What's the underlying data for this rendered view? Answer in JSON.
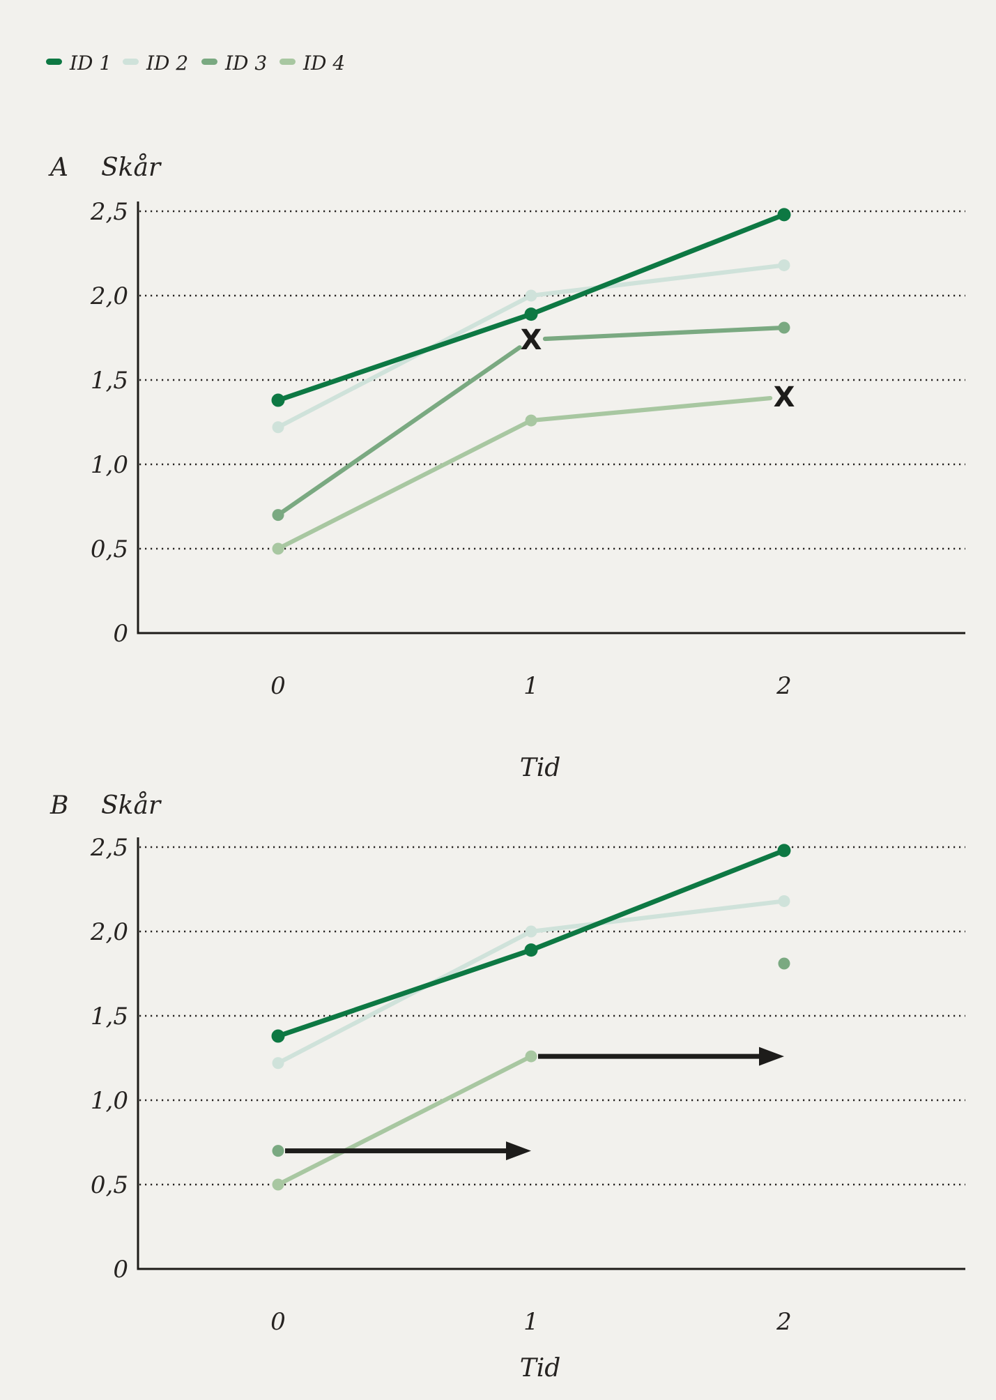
{
  "colors": {
    "background": "#f2f1ed",
    "ink": "#262321",
    "axis": "#1d1b18",
    "annotation": "#1d1c1a"
  },
  "legend": {
    "items": [
      {
        "label": "ID 1",
        "color": "#0d7843"
      },
      {
        "label": "ID 2",
        "color": "#cfe2da"
      },
      {
        "label": "ID 3",
        "color": "#7aa981"
      },
      {
        "label": "ID 4",
        "color": "#a8c7a1"
      }
    ]
  },
  "chart_data": [
    {
      "type": "line",
      "panel_label": "A",
      "ylabel": "Skår",
      "xlabel": "Tid",
      "x": [
        0,
        1,
        2
      ],
      "x_tick_labels": [
        "0",
        "1",
        "2"
      ],
      "y_ticks": [
        {
          "value": 2.5,
          "label": "2,5"
        },
        {
          "value": 2.0,
          "label": "2,0"
        },
        {
          "value": 1.5,
          "label": "1,5"
        },
        {
          "value": 1.0,
          "label": "1,0"
        },
        {
          "value": 0.5,
          "label": "0,5"
        },
        {
          "value": 0,
          "label": "0"
        }
      ],
      "ylim": [
        0,
        2.5
      ],
      "grid": "dotted-horizontal",
      "legend_position": "top-left-above-figure",
      "marker_glyph": "X",
      "series": [
        {
          "name": "ID 1",
          "color": "#0d7843",
          "values": [
            1.38,
            1.89,
            2.48
          ],
          "markers": [
            "dot",
            "dot",
            "dot"
          ]
        },
        {
          "name": "ID 2",
          "color": "#cfe2da",
          "values": [
            1.22,
            2.0,
            2.18
          ],
          "markers": [
            "dot",
            "dot",
            "dot"
          ]
        },
        {
          "name": "ID 3",
          "color": "#7aa981",
          "values": [
            0.7,
            1.74,
            1.81
          ],
          "markers": [
            "dot",
            "x",
            "dot"
          ]
        },
        {
          "name": "ID 4",
          "color": "#a8c7a1",
          "values": [
            0.5,
            1.26,
            1.4
          ],
          "markers": [
            "dot",
            "dot",
            "x"
          ]
        }
      ],
      "arrows": []
    },
    {
      "type": "line",
      "panel_label": "B",
      "ylabel": "Skår",
      "xlabel": "Tid",
      "x": [
        0,
        1,
        2
      ],
      "x_tick_labels": [
        "0",
        "1",
        "2"
      ],
      "y_ticks": [
        {
          "value": 2.5,
          "label": "2,5"
        },
        {
          "value": 2.0,
          "label": "2,0"
        },
        {
          "value": 1.5,
          "label": "1,5"
        },
        {
          "value": 1.0,
          "label": "1,0"
        },
        {
          "value": 0.5,
          "label": "0,5"
        },
        {
          "value": 0,
          "label": "0"
        }
      ],
      "ylim": [
        0,
        2.5
      ],
      "grid": "dotted-horizontal",
      "marker_glyph": "",
      "series": [
        {
          "name": "ID 1",
          "color": "#0d7843",
          "values": [
            1.38,
            1.89,
            2.48
          ],
          "markers": [
            "dot",
            "dot",
            "dot"
          ]
        },
        {
          "name": "ID 2",
          "color": "#cfe2da",
          "values": [
            1.22,
            2.0,
            2.18
          ],
          "markers": [
            "dot",
            "dot",
            "dot"
          ]
        },
        {
          "name": "ID 3",
          "color": "#7aa981",
          "values": [
            0.7,
            null,
            1.81
          ],
          "markers": [
            "dot",
            null,
            "dot"
          ]
        },
        {
          "name": "ID 4",
          "color": "#a8c7a1",
          "values": [
            0.5,
            1.26,
            null
          ],
          "markers": [
            "dot",
            "dot",
            null
          ]
        }
      ],
      "arrows": [
        {
          "y": 0.7,
          "from": 0,
          "to": 1
        },
        {
          "y": 1.26,
          "from": 1,
          "to": 2
        }
      ]
    }
  ]
}
